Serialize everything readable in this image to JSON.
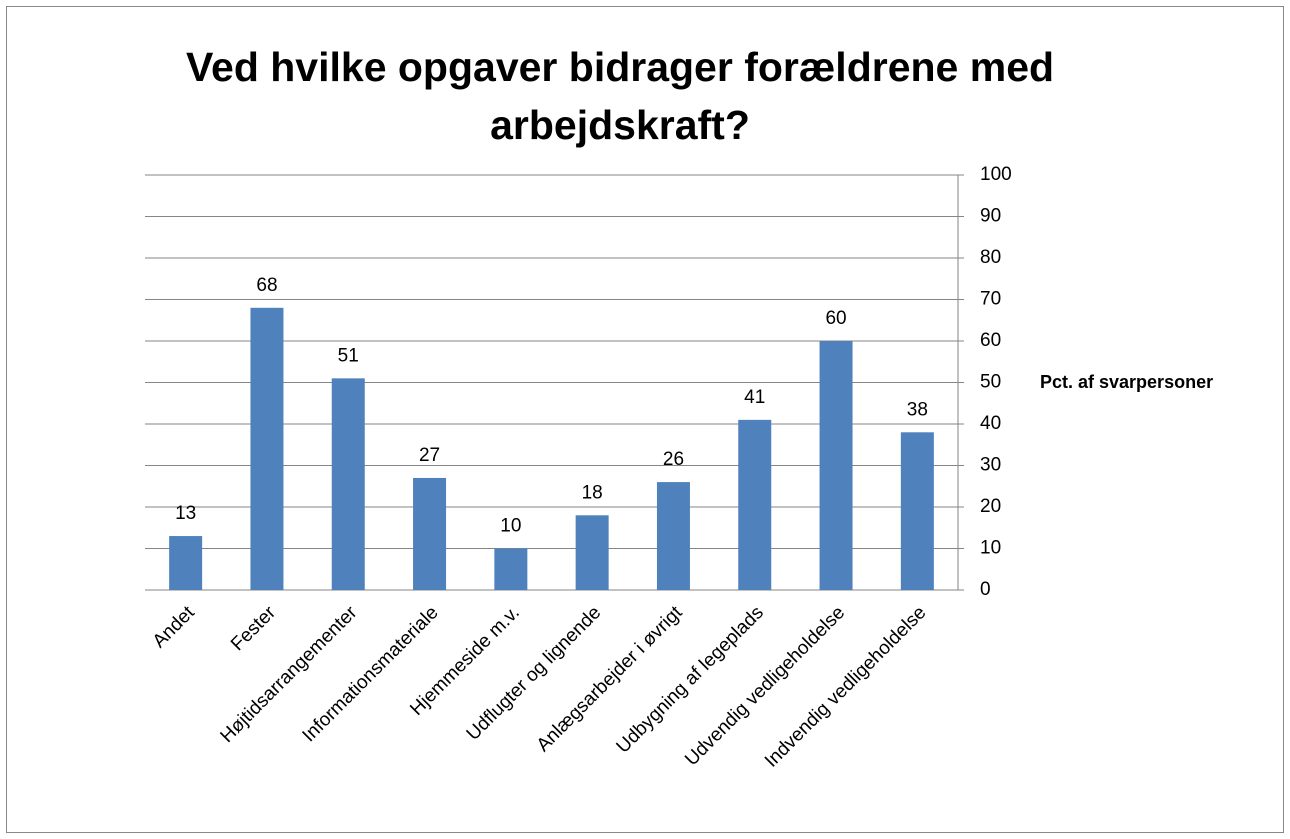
{
  "chart_data": {
    "type": "bar",
    "title": "Ved hvilke opgaver bidrager forældrene med arbejdskraft?",
    "y_axis_label": "Pct. af svarpersoner",
    "categories": [
      "Andet",
      "Fester",
      "Højtidsarrangementer",
      "Informationsmateriale",
      "Hjemmeside m.v.",
      "Udflugter og lignende",
      "Anlægsarbejder i øvrigt",
      "Udbygning af legeplads",
      "Udvendig vedligeholdelse",
      "Indvendig vedligeholdelse"
    ],
    "values": [
      13,
      68,
      51,
      27,
      10,
      18,
      26,
      41,
      60,
      38
    ],
    "color": "#4f81bd",
    "ylim": [
      0,
      100
    ],
    "yticks": [
      0,
      10,
      20,
      30,
      40,
      50,
      60,
      70,
      80,
      90,
      100
    ],
    "grid": true,
    "y_axis_side": "right"
  }
}
